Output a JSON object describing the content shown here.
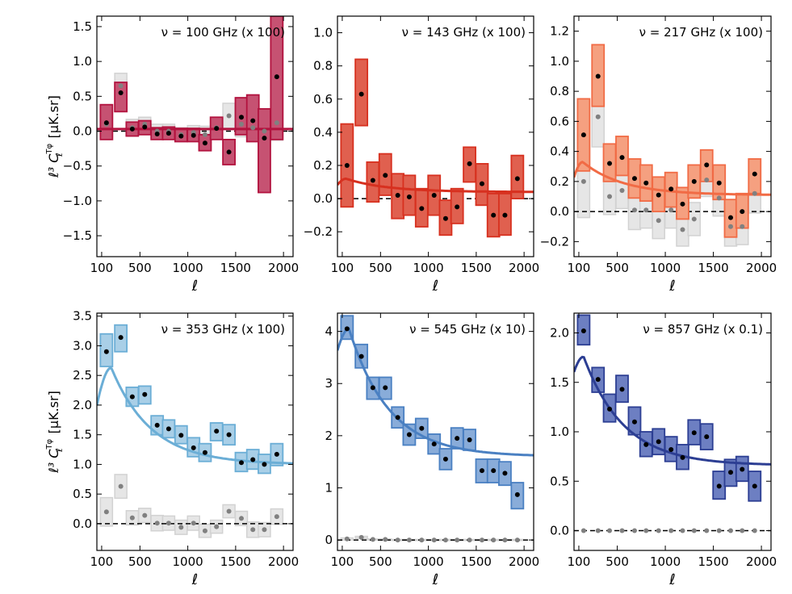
{
  "chart_data": [
    {
      "type": "scatter",
      "annotation": "ν = 100 GHz  (x 100)",
      "xlabel": "ℓ",
      "ylabel_main": "ℓ³ C",
      "ylabel_sub": "ℓ",
      "ylabel_sup": "Tφ",
      "ylabel_unit": "[μK.sr]",
      "xlim": [
        50,
        2100
      ],
      "ylim": [
        -1.8,
        1.65
      ],
      "xticks": [
        100,
        500,
        1000,
        1500,
        2000
      ],
      "xtick_labels": [
        "100",
        "500",
        "1000",
        "1500",
        "2000"
      ],
      "yticks": [
        -1.5,
        -1.0,
        -0.5,
        0.0,
        0.5,
        1.0,
        1.5
      ],
      "ytick_labels": [
        "−1.5",
        "−1.0",
        "−0.5",
        "0.0",
        "0.5",
        "1.0",
        "1.5"
      ],
      "color": "#b2123e",
      "fill": "#c65272",
      "grey_x": [
        150,
        300,
        420,
        550,
        680,
        800,
        930,
        1060,
        1180,
        1300,
        1430,
        1560,
        1680,
        1800,
        1930
      ],
      "grey_y": [
        0.1,
        0.65,
        0.05,
        0.1,
        0.0,
        0.0,
        -0.05,
        -0.02,
        -0.05,
        0.05,
        0.22,
        0.1,
        0.05,
        0.0,
        0.12
      ],
      "grey_err": [
        0.18,
        0.18,
        0.12,
        0.1,
        0.1,
        0.1,
        0.1,
        0.1,
        0.12,
        0.15,
        0.18,
        0.18,
        0.2,
        0.22,
        0.25
      ],
      "points": [
        {
          "x": 150,
          "y": 0.12,
          "lo": -0.12,
          "hi": 0.38
        },
        {
          "x": 300,
          "y": 0.55,
          "lo": 0.28,
          "hi": 0.7
        },
        {
          "x": 420,
          "y": 0.03,
          "lo": -0.07,
          "hi": 0.13
        },
        {
          "x": 550,
          "y": 0.06,
          "lo": -0.05,
          "hi": 0.15
        },
        {
          "x": 680,
          "y": -0.04,
          "lo": -0.12,
          "hi": 0.05
        },
        {
          "x": 800,
          "y": -0.03,
          "lo": -0.12,
          "hi": 0.06
        },
        {
          "x": 930,
          "y": -0.07,
          "lo": -0.15,
          "hi": 0.04
        },
        {
          "x": 1060,
          "y": -0.06,
          "lo": -0.15,
          "hi": 0.04
        },
        {
          "x": 1180,
          "y": -0.17,
          "lo": -0.28,
          "hi": -0.05
        },
        {
          "x": 1300,
          "y": 0.04,
          "lo": -0.12,
          "hi": 0.2
        },
        {
          "x": 1430,
          "y": -0.3,
          "lo": -0.48,
          "hi": -0.12
        },
        {
          "x": 1560,
          "y": 0.2,
          "lo": -0.05,
          "hi": 0.48
        },
        {
          "x": 1680,
          "y": 0.15,
          "lo": -0.15,
          "hi": 0.52
        },
        {
          "x": 1800,
          "y": -0.1,
          "lo": -0.88,
          "hi": 0.32
        },
        {
          "x": 1930,
          "y": 0.78,
          "lo": -0.12,
          "hi": 1.65
        }
      ],
      "curve": {
        "base": 0.03,
        "amp": 0.0,
        "peak": 100
      }
    },
    {
      "type": "scatter",
      "annotation": "ν = 143 GHz  (x 100)",
      "xlabel": "ℓ",
      "xlim": [
        50,
        2100
      ],
      "ylim": [
        -0.35,
        1.1
      ],
      "xticks": [
        100,
        500,
        1000,
        1500,
        2000
      ],
      "xtick_labels": [
        "100",
        "500",
        "1000",
        "1500",
        "2000"
      ],
      "yticks": [
        -0.2,
        0.0,
        0.2,
        0.4,
        0.6,
        0.8,
        1.0
      ],
      "ytick_labels": [
        "−0.2",
        "0.0",
        "0.2",
        "0.4",
        "0.6",
        "0.8",
        "1.0"
      ],
      "color": "#d7301f",
      "fill": "#e0604f",
      "grey_x": [],
      "grey_y": [],
      "grey_err": [],
      "points": [
        {
          "x": 150,
          "y": 0.2,
          "lo": -0.05,
          "hi": 0.45
        },
        {
          "x": 300,
          "y": 0.63,
          "lo": 0.44,
          "hi": 0.84
        },
        {
          "x": 420,
          "y": 0.11,
          "lo": -0.02,
          "hi": 0.22
        },
        {
          "x": 550,
          "y": 0.14,
          "lo": 0.02,
          "hi": 0.27
        },
        {
          "x": 680,
          "y": 0.02,
          "lo": -0.12,
          "hi": 0.15
        },
        {
          "x": 800,
          "y": 0.01,
          "lo": -0.1,
          "hi": 0.14
        },
        {
          "x": 930,
          "y": -0.06,
          "lo": -0.17,
          "hi": 0.06
        },
        {
          "x": 1060,
          "y": 0.02,
          "lo": -0.1,
          "hi": 0.14
        },
        {
          "x": 1180,
          "y": -0.12,
          "lo": -0.22,
          "hi": -0.01
        },
        {
          "x": 1300,
          "y": -0.05,
          "lo": -0.15,
          "hi": 0.06
        },
        {
          "x": 1430,
          "y": 0.21,
          "lo": 0.1,
          "hi": 0.31
        },
        {
          "x": 1560,
          "y": 0.09,
          "lo": -0.04,
          "hi": 0.21
        },
        {
          "x": 1680,
          "y": -0.1,
          "lo": -0.23,
          "hi": 0.03
        },
        {
          "x": 1800,
          "y": -0.1,
          "lo": -0.22,
          "hi": 0.03
        },
        {
          "x": 1930,
          "y": 0.12,
          "lo": 0.0,
          "hi": 0.26
        }
      ],
      "curve": {
        "base": 0.04,
        "amp": 0.08,
        "peak": 140
      }
    },
    {
      "type": "scatter",
      "annotation": "ν = 217 GHz  (x 100)",
      "xlabel": "ℓ",
      "xlim": [
        50,
        2100
      ],
      "ylim": [
        -0.3,
        1.3
      ],
      "xticks": [
        100,
        500,
        1000,
        1500,
        2000
      ],
      "xtick_labels": [
        "100",
        "500",
        "1000",
        "1500",
        "2000"
      ],
      "yticks": [
        -0.2,
        0.0,
        0.2,
        0.4,
        0.6,
        0.8,
        1.0,
        1.2
      ],
      "ytick_labels": [
        "−0.2",
        "0.0",
        "0.2",
        "0.4",
        "0.6",
        "0.8",
        "1.0",
        "1.2"
      ],
      "color": "#f16b45",
      "fill": "#f5a080",
      "grey_x": [
        150,
        300,
        420,
        550,
        680,
        800,
        930,
        1060,
        1180,
        1300,
        1430,
        1560,
        1680,
        1800,
        1930
      ],
      "grey_y": [
        0.2,
        0.63,
        0.1,
        0.14,
        0.01,
        0.01,
        -0.06,
        0.01,
        -0.12,
        -0.05,
        0.21,
        0.09,
        -0.1,
        -0.1,
        0.12
      ],
      "grey_err": [
        0.24,
        0.2,
        0.12,
        0.12,
        0.13,
        0.12,
        0.12,
        0.12,
        0.11,
        0.11,
        0.11,
        0.12,
        0.13,
        0.12,
        0.13
      ],
      "points": [
        {
          "x": 150,
          "y": 0.51,
          "lo": 0.27,
          "hi": 0.75
        },
        {
          "x": 300,
          "y": 0.9,
          "lo": 0.7,
          "hi": 1.11
        },
        {
          "x": 420,
          "y": 0.32,
          "lo": 0.2,
          "hi": 0.45
        },
        {
          "x": 550,
          "y": 0.36,
          "lo": 0.24,
          "hi": 0.5
        },
        {
          "x": 680,
          "y": 0.22,
          "lo": 0.09,
          "hi": 0.35
        },
        {
          "x": 800,
          "y": 0.19,
          "lo": 0.07,
          "hi": 0.31
        },
        {
          "x": 930,
          "y": 0.11,
          "lo": 0.0,
          "hi": 0.23
        },
        {
          "x": 1060,
          "y": 0.15,
          "lo": 0.03,
          "hi": 0.26
        },
        {
          "x": 1180,
          "y": 0.05,
          "lo": -0.05,
          "hi": 0.16
        },
        {
          "x": 1300,
          "y": 0.2,
          "lo": 0.09,
          "hi": 0.31
        },
        {
          "x": 1430,
          "y": 0.31,
          "lo": 0.2,
          "hi": 0.41
        },
        {
          "x": 1560,
          "y": 0.19,
          "lo": 0.08,
          "hi": 0.31
        },
        {
          "x": 1680,
          "y": -0.04,
          "lo": -0.17,
          "hi": 0.08
        },
        {
          "x": 1800,
          "y": 0.0,
          "lo": -0.11,
          "hi": 0.12
        },
        {
          "x": 1930,
          "y": 0.25,
          "lo": 0.12,
          "hi": 0.35
        }
      ],
      "curve": {
        "base": 0.11,
        "amp": 0.22,
        "peak": 140
      }
    },
    {
      "type": "scatter",
      "annotation": "ν = 353 GHz  (x 100)",
      "xlabel": "ℓ",
      "ylabel_main": "ℓ³ C",
      "ylabel_sub": "ℓ",
      "ylabel_sup": "Tφ",
      "ylabel_unit": "[μK.sr]",
      "xlim": [
        50,
        2100
      ],
      "ylim": [
        -0.45,
        3.55
      ],
      "xticks": [
        100,
        500,
        1000,
        1500,
        2000
      ],
      "xtick_labels": [
        "100",
        "500",
        "1000",
        "1500",
        "2000"
      ],
      "yticks": [
        0.0,
        0.5,
        1.0,
        1.5,
        2.0,
        2.5,
        3.0,
        3.5
      ],
      "ytick_labels": [
        "0.0",
        "0.5",
        "1.0",
        "1.5",
        "2.0",
        "2.5",
        "3.0",
        "3.5"
      ],
      "color": "#6baed6",
      "fill": "#a9cfe7",
      "grey_x": [
        150,
        300,
        420,
        550,
        680,
        800,
        930,
        1060,
        1180,
        1300,
        1430,
        1560,
        1680,
        1800,
        1930
      ],
      "grey_y": [
        0.2,
        0.63,
        0.1,
        0.14,
        0.01,
        0.01,
        -0.06,
        0.01,
        -0.12,
        -0.05,
        0.21,
        0.09,
        -0.1,
        -0.1,
        0.12
      ],
      "grey_err": [
        0.24,
        0.2,
        0.12,
        0.12,
        0.13,
        0.12,
        0.12,
        0.12,
        0.11,
        0.11,
        0.11,
        0.12,
        0.13,
        0.12,
        0.13
      ],
      "points": [
        {
          "x": 150,
          "y": 2.9,
          "lo": 2.65,
          "hi": 3.2
        },
        {
          "x": 300,
          "y": 3.14,
          "lo": 2.9,
          "hi": 3.35
        },
        {
          "x": 420,
          "y": 2.14,
          "lo": 1.98,
          "hi": 2.3
        },
        {
          "x": 550,
          "y": 2.18,
          "lo": 2.02,
          "hi": 2.32
        },
        {
          "x": 680,
          "y": 1.66,
          "lo": 1.5,
          "hi": 1.82
        },
        {
          "x": 800,
          "y": 1.6,
          "lo": 1.45,
          "hi": 1.75
        },
        {
          "x": 930,
          "y": 1.49,
          "lo": 1.35,
          "hi": 1.65
        },
        {
          "x": 1060,
          "y": 1.28,
          "lo": 1.13,
          "hi": 1.45
        },
        {
          "x": 1180,
          "y": 1.2,
          "lo": 1.05,
          "hi": 1.35
        },
        {
          "x": 1300,
          "y": 1.56,
          "lo": 1.4,
          "hi": 1.7
        },
        {
          "x": 1430,
          "y": 1.5,
          "lo": 1.33,
          "hi": 1.67
        },
        {
          "x": 1560,
          "y": 1.03,
          "lo": 0.88,
          "hi": 1.2
        },
        {
          "x": 1680,
          "y": 1.08,
          "lo": 0.92,
          "hi": 1.25
        },
        {
          "x": 1800,
          "y": 1.0,
          "lo": 0.85,
          "hi": 1.17
        },
        {
          "x": 1930,
          "y": 1.17,
          "lo": 0.98,
          "hi": 1.35
        }
      ],
      "curve": {
        "base": 1.0,
        "amp": 1.63,
        "peak": 200,
        "start": 1.6
      }
    },
    {
      "type": "scatter",
      "annotation": "ν = 545 GHz  (x 10)",
      "xlabel": "ℓ",
      "xlim": [
        50,
        2100
      ],
      "ylim": [
        -0.2,
        4.35
      ],
      "xticks": [
        100,
        500,
        1000,
        1500,
        2000
      ],
      "xtick_labels": [
        "100",
        "500",
        "1000",
        "1500",
        "2000"
      ],
      "yticks": [
        0,
        1,
        2,
        3,
        4
      ],
      "ytick_labels": [
        "0",
        "1",
        "2",
        "3",
        "4"
      ],
      "color": "#4a80c2",
      "fill": "#89acd9",
      "grey_x": [
        150,
        300,
        420,
        550,
        680,
        800,
        930,
        1060,
        1180,
        1300,
        1430,
        1560,
        1680,
        1800,
        1930
      ],
      "grey_y": [
        0.02,
        0.05,
        0.01,
        0.01,
        0.0,
        0.0,
        0.0,
        0.0,
        0.0,
        0.0,
        0.0,
        0.0,
        0.0,
        0.0,
        0.0
      ],
      "grey_err": [
        0.02,
        0.02,
        0.01,
        0.01,
        0.01,
        0.01,
        0.01,
        0.01,
        0.01,
        0.01,
        0.01,
        0.01,
        0.01,
        0.01,
        0.01
      ],
      "points": [
        {
          "x": 150,
          "y": 4.05,
          "lo": 3.85,
          "hi": 4.3
        },
        {
          "x": 300,
          "y": 3.52,
          "lo": 3.3,
          "hi": 3.75
        },
        {
          "x": 420,
          "y": 2.92,
          "lo": 2.7,
          "hi": 3.12
        },
        {
          "x": 550,
          "y": 2.92,
          "lo": 2.7,
          "hi": 3.12
        },
        {
          "x": 680,
          "y": 2.35,
          "lo": 2.15,
          "hi": 2.55
        },
        {
          "x": 800,
          "y": 2.02,
          "lo": 1.82,
          "hi": 2.22
        },
        {
          "x": 930,
          "y": 2.14,
          "lo": 1.95,
          "hi": 2.33
        },
        {
          "x": 1060,
          "y": 1.84,
          "lo": 1.65,
          "hi": 2.03
        },
        {
          "x": 1180,
          "y": 1.55,
          "lo": 1.35,
          "hi": 1.75
        },
        {
          "x": 1300,
          "y": 1.95,
          "lo": 1.75,
          "hi": 2.15
        },
        {
          "x": 1430,
          "y": 1.92,
          "lo": 1.72,
          "hi": 2.12
        },
        {
          "x": 1560,
          "y": 1.33,
          "lo": 1.1,
          "hi": 1.55
        },
        {
          "x": 1680,
          "y": 1.33,
          "lo": 1.1,
          "hi": 1.55
        },
        {
          "x": 1800,
          "y": 1.28,
          "lo": 1.05,
          "hi": 1.5
        },
        {
          "x": 1930,
          "y": 0.87,
          "lo": 0.6,
          "hi": 1.1
        }
      ],
      "curve": {
        "base": 1.6,
        "amp": 2.45,
        "peak": 170,
        "start": 3.3
      }
    },
    {
      "type": "scatter",
      "annotation": "ν = 857 GHz  (x 0.1)",
      "xlabel": "ℓ",
      "xlim": [
        50,
        2100
      ],
      "ylim": [
        -0.2,
        2.2
      ],
      "xticks": [
        100,
        500,
        1000,
        1500,
        2000
      ],
      "xtick_labels": [
        "100",
        "500",
        "1000",
        "1500",
        "2000"
      ],
      "yticks": [
        0.0,
        0.5,
        1.0,
        1.5,
        2.0
      ],
      "ytick_labels": [
        "0.0",
        "0.5",
        "1.0",
        "1.5",
        "2.0"
      ],
      "color": "#2c3e93",
      "fill": "#6d7fc2",
      "grey_x": [
        150,
        300,
        420,
        550,
        680,
        800,
        930,
        1060,
        1180,
        1300,
        1430,
        1560,
        1680,
        1800,
        1930
      ],
      "grey_y": [
        0.0,
        0.0,
        0.0,
        0.0,
        0.0,
        0.0,
        0.0,
        0.0,
        0.0,
        0.0,
        0.0,
        0.0,
        0.0,
        0.0,
        0.0
      ],
      "grey_err": [
        0.0,
        0.0,
        0.0,
        0.0,
        0.0,
        0.0,
        0.0,
        0.0,
        0.0,
        0.0,
        0.0,
        0.0,
        0.0,
        0.0,
        0.0
      ],
      "points": [
        {
          "x": 150,
          "y": 2.02,
          "lo": 1.88,
          "hi": 2.18
        },
        {
          "x": 300,
          "y": 1.53,
          "lo": 1.4,
          "hi": 1.65
        },
        {
          "x": 420,
          "y": 1.23,
          "lo": 1.1,
          "hi": 1.38
        },
        {
          "x": 550,
          "y": 1.43,
          "lo": 1.3,
          "hi": 1.57
        },
        {
          "x": 680,
          "y": 1.1,
          "lo": 0.97,
          "hi": 1.25
        },
        {
          "x": 800,
          "y": 0.87,
          "lo": 0.75,
          "hi": 1.0
        },
        {
          "x": 930,
          "y": 0.9,
          "lo": 0.77,
          "hi": 1.03
        },
        {
          "x": 1060,
          "y": 0.82,
          "lo": 0.7,
          "hi": 0.95
        },
        {
          "x": 1180,
          "y": 0.74,
          "lo": 0.62,
          "hi": 0.87
        },
        {
          "x": 1300,
          "y": 0.99,
          "lo": 0.87,
          "hi": 1.12
        },
        {
          "x": 1430,
          "y": 0.95,
          "lo": 0.82,
          "hi": 1.08
        },
        {
          "x": 1560,
          "y": 0.45,
          "lo": 0.32,
          "hi": 0.6
        },
        {
          "x": 1680,
          "y": 0.59,
          "lo": 0.45,
          "hi": 0.72
        },
        {
          "x": 1800,
          "y": 0.62,
          "lo": 0.5,
          "hi": 0.75
        },
        {
          "x": 1930,
          "y": 0.45,
          "lo": 0.3,
          "hi": 0.6
        }
      ],
      "curve": {
        "base": 0.66,
        "amp": 1.1,
        "peak": 150,
        "start": 1.45
      }
    }
  ]
}
